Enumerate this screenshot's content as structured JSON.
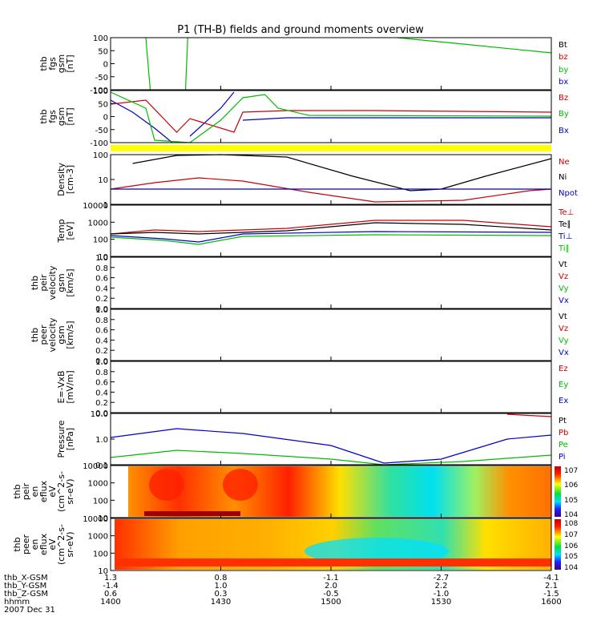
{
  "title": "P1 (TH-B) fields and ground moments overview",
  "chart_data": [
    {
      "type": "line",
      "id": "p1",
      "ylabel": [
        "thb",
        "fgs",
        "gsm",
        "[nT]"
      ],
      "ylim": [
        -100,
        100
      ],
      "yticks": [
        "100",
        "50",
        "0",
        "-50",
        "-100"
      ],
      "legend": [
        {
          "name": "Bt",
          "color": "#000000"
        },
        {
          "name": "bz",
          "color": "#cc0000"
        },
        {
          "name": "by",
          "color": "#00bb00"
        },
        {
          "name": "bx",
          "color": "#0000cc"
        }
      ]
    },
    {
      "type": "line",
      "id": "p2",
      "ylabel": [
        "thb",
        "fgs",
        "gsm",
        "[nT]"
      ],
      "ylim": [
        -100,
        100
      ],
      "yticks": [
        "100",
        "50",
        "0",
        "-50",
        "-100"
      ],
      "legend": [
        {
          "name": "Bz",
          "color": "#cc0000"
        },
        {
          "name": "By",
          "color": "#00bb00"
        },
        {
          "name": "Bx",
          "color": "#0000cc"
        }
      ]
    },
    {
      "type": "line",
      "id": "p3",
      "ylabel": [
        "Density",
        "[cm-3]"
      ],
      "scale": "log",
      "yticks": [
        "100",
        "10",
        "1"
      ],
      "legend": [
        {
          "name": "Ne",
          "color": "#cc0000"
        },
        {
          "name": "Ni",
          "color": "#000000"
        },
        {
          "name": "Npot",
          "color": "#0000cc"
        }
      ]
    },
    {
      "type": "line",
      "id": "p4",
      "ylabel": [
        "Temp",
        "[eV]"
      ],
      "scale": "log",
      "yticks": [
        "10000",
        "1000",
        "100",
        "10"
      ],
      "legend": [
        {
          "name": "Te⊥",
          "color": "#cc0000"
        },
        {
          "name": "Te∥",
          "color": "#000000"
        },
        {
          "name": "Ti⊥",
          "color": "#0000cc"
        },
        {
          "name": "Ti∥",
          "color": "#00bb00"
        }
      ]
    },
    {
      "type": "line",
      "id": "p5",
      "ylabel": [
        "thb",
        "peir",
        "velocity",
        "gsm",
        "[km/s]"
      ],
      "ylim": [
        0,
        1
      ],
      "yticks": [
        "1.0",
        "0.8",
        "0.6",
        "0.4",
        "0.2",
        "0.0"
      ],
      "legend": [
        {
          "name": "Vt",
          "color": "#000000"
        },
        {
          "name": "Vz",
          "color": "#cc0000"
        },
        {
          "name": "Vy",
          "color": "#00bb00"
        },
        {
          "name": "Vx",
          "color": "#0000cc"
        }
      ]
    },
    {
      "type": "line",
      "id": "p6",
      "ylabel": [
        "thb",
        "peer",
        "velocity",
        "gsm",
        "[km/s]"
      ],
      "ylim": [
        0,
        1
      ],
      "yticks": [
        "1.0",
        "0.8",
        "0.6",
        "0.4",
        "0.2",
        "0.0"
      ],
      "legend": [
        {
          "name": "Vt",
          "color": "#000000"
        },
        {
          "name": "Vz",
          "color": "#cc0000"
        },
        {
          "name": "Vy",
          "color": "#00bb00"
        },
        {
          "name": "Vx",
          "color": "#0000cc"
        }
      ]
    },
    {
      "type": "line",
      "id": "p7",
      "ylabel": [
        "E=-VxB",
        "[mV/m]"
      ],
      "ylim": [
        0,
        1
      ],
      "yticks": [
        "1.0",
        "0.8",
        "0.6",
        "0.4",
        "0.2",
        "0.0"
      ],
      "legend": [
        {
          "name": "Ez",
          "color": "#cc0000"
        },
        {
          "name": "Ey",
          "color": "#00bb00"
        },
        {
          "name": "Ex",
          "color": "#0000cc"
        }
      ]
    },
    {
      "type": "line",
      "id": "p8",
      "ylabel": [
        "Pressure",
        "[nPa]"
      ],
      "scale": "log",
      "yticks": [
        "10.0",
        "1.0",
        "0.1"
      ],
      "legend": [
        {
          "name": "Pt",
          "color": "#000000"
        },
        {
          "name": "Pb",
          "color": "#cc0000"
        },
        {
          "name": "Pe",
          "color": "#00bb00"
        },
        {
          "name": "Pi",
          "color": "#0000cc"
        }
      ]
    },
    {
      "type": "heatmap",
      "id": "p9",
      "ylabel": [
        "thb",
        "peir",
        "en",
        "eflux",
        "eV",
        "(cm^2-s-",
        "sr-eV)"
      ],
      "scale": "log",
      "yticks": [
        "10000",
        "1000",
        "100",
        "10"
      ],
      "colorbar": [
        "10^7",
        "10^6",
        "10^5",
        "10^4"
      ]
    },
    {
      "type": "heatmap",
      "id": "p10",
      "ylabel": [
        "thb",
        "peer",
        "en",
        "eflux",
        "eV",
        "(cm^2-s-",
        "sr-eV)"
      ],
      "scale": "log",
      "yticks": [
        "10000",
        "1000",
        "100",
        "10"
      ],
      "colorbar": [
        "10^8",
        "10^7",
        "10^6",
        "10^5",
        "10^4"
      ]
    }
  ],
  "xaxis": {
    "rows": [
      {
        "label": "thb_X-GSM",
        "values": [
          "1.3",
          "0.8",
          "-1.1",
          "-2.7",
          "-4.1"
        ]
      },
      {
        "label": "thb_Y-GSM",
        "values": [
          "-1.4",
          "1.0",
          "2.0",
          "2.2",
          "2.1"
        ]
      },
      {
        "label": "thb_Z-GSM",
        "values": [
          "0.6",
          "0.3",
          "-0.5",
          "-1.0",
          "-1.5"
        ]
      },
      {
        "label": "hhmm",
        "values": [
          "1400",
          "1430",
          "1500",
          "1530",
          "1600"
        ]
      }
    ],
    "date": "2007 Dec 31"
  }
}
